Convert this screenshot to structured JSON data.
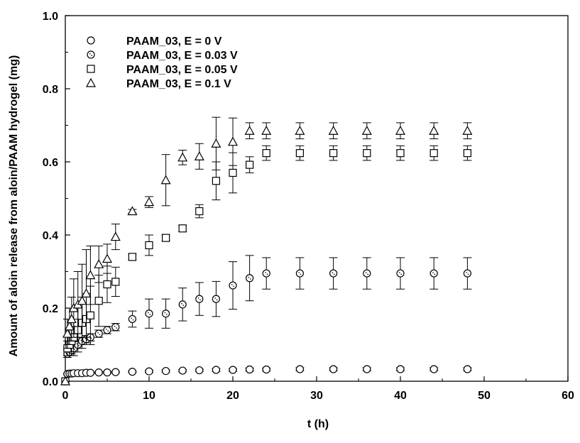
{
  "chart_data": {
    "type": "scatter",
    "title": "",
    "xlabel": "t (h)",
    "ylabel": "Amount of aloin release from aloin/PAAM hydrogel (mg)",
    "xlim": [
      0,
      60
    ],
    "ylim": [
      0.0,
      1.0
    ],
    "x_ticks": [
      0,
      10,
      20,
      30,
      40,
      50,
      60
    ],
    "y_ticks": [
      0.0,
      0.2,
      0.4,
      0.6,
      0.8,
      1.0
    ],
    "x_tick_labels": [
      "0",
      "10",
      "20",
      "30",
      "40",
      "50",
      "60"
    ],
    "y_tick_labels": [
      "0.0",
      "0.2",
      "0.4",
      "0.6",
      "0.8",
      "1.0"
    ],
    "grid": false,
    "legend_position": "top-left",
    "series": [
      {
        "name": "PAAM_03, E = 0 V",
        "marker": "circle",
        "x": [
          0,
          0.25,
          0.5,
          0.75,
          1,
          1.5,
          2,
          2.5,
          3,
          4,
          5,
          6,
          8,
          10,
          12,
          14,
          16,
          18,
          20,
          22,
          24,
          28,
          32,
          36,
          40,
          44,
          48
        ],
        "y": [
          0.0,
          0.02,
          0.021,
          0.021,
          0.022,
          0.022,
          0.022,
          0.023,
          0.023,
          0.024,
          0.024,
          0.025,
          0.026,
          0.027,
          0.028,
          0.029,
          0.03,
          0.031,
          0.031,
          0.032,
          0.032,
          0.033,
          0.033,
          0.033,
          0.033,
          0.033,
          0.033
        ],
        "err": [
          0,
          0.002,
          0.002,
          0.002,
          0.002,
          0.002,
          0.002,
          0.002,
          0.002,
          0.002,
          0.002,
          0.002,
          0.002,
          0.003,
          0.003,
          0.003,
          0.003,
          0.004,
          0.004,
          0.004,
          0.004,
          0.004,
          0.004,
          0.004,
          0.004,
          0.004,
          0.004
        ]
      },
      {
        "name": "PAAM_03, E = 0.03 V",
        "marker": "dotted-circle",
        "x": [
          0,
          0.25,
          0.5,
          0.75,
          1,
          1.5,
          2,
          2.5,
          3,
          4,
          5,
          6,
          8,
          10,
          12,
          14,
          16,
          18,
          20,
          22,
          24,
          28,
          32,
          36,
          40,
          44,
          48
        ],
        "y": [
          0.0,
          0.075,
          0.08,
          0.085,
          0.09,
          0.1,
          0.11,
          0.115,
          0.12,
          0.13,
          0.14,
          0.148,
          0.17,
          0.185,
          0.185,
          0.21,
          0.225,
          0.225,
          0.262,
          0.282,
          0.295,
          0.295,
          0.295,
          0.295,
          0.295,
          0.295,
          0.295
        ],
        "err": [
          0,
          0.01,
          0.01,
          0.01,
          0.01,
          0.01,
          0.01,
          0.01,
          0.01,
          0.01,
          0.01,
          0.01,
          0.022,
          0.04,
          0.04,
          0.045,
          0.045,
          0.048,
          0.065,
          0.062,
          0.043,
          0.043,
          0.043,
          0.043,
          0.043,
          0.043,
          0.043
        ]
      },
      {
        "name": "PAAM_03, E = 0.05 V",
        "marker": "square",
        "x": [
          0,
          0.25,
          0.5,
          0.75,
          1,
          1.5,
          2,
          2.5,
          3,
          4,
          5,
          6,
          8,
          10,
          12,
          14,
          16,
          18,
          20,
          22,
          24,
          28,
          32,
          36,
          40,
          44,
          48
        ],
        "y": [
          0.0,
          0.09,
          0.1,
          0.11,
          0.12,
          0.14,
          0.16,
          0.17,
          0.18,
          0.22,
          0.265,
          0.272,
          0.34,
          0.372,
          0.392,
          0.418,
          0.465,
          0.548,
          0.57,
          0.592,
          0.624,
          0.624,
          0.624,
          0.624,
          0.624,
          0.624,
          0.624
        ],
        "err": [
          0,
          0.02,
          0.03,
          0.04,
          0.05,
          0.06,
          0.07,
          0.07,
          0.08,
          0.07,
          0.05,
          0.04,
          0.008,
          0.028,
          0.008,
          0.008,
          0.018,
          0.052,
          0.055,
          0.022,
          0.02,
          0.02,
          0.02,
          0.02,
          0.02,
          0.02,
          0.02
        ]
      },
      {
        "name": "PAAM_03, E = 0.1 V",
        "marker": "triangle",
        "x": [
          0,
          0.25,
          0.5,
          0.75,
          1,
          1.5,
          2,
          2.5,
          3,
          4,
          5,
          6,
          8,
          10,
          12,
          14,
          16,
          18,
          20,
          22,
          24,
          28,
          32,
          36,
          40,
          44,
          48
        ],
        "y": [
          0.0,
          0.13,
          0.15,
          0.17,
          0.2,
          0.21,
          0.22,
          0.24,
          0.29,
          0.32,
          0.335,
          0.395,
          0.465,
          0.49,
          0.55,
          0.612,
          0.615,
          0.65,
          0.655,
          0.685,
          0.685,
          0.685,
          0.685,
          0.685,
          0.685,
          0.685,
          0.685
        ],
        "err": [
          0,
          0.04,
          0.05,
          0.06,
          0.08,
          0.09,
          0.1,
          0.12,
          0.08,
          0.05,
          0.04,
          0.035,
          0.005,
          0.015,
          0.07,
          0.02,
          0.035,
          0.072,
          0.065,
          0.022,
          0.022,
          0.022,
          0.022,
          0.022,
          0.022,
          0.022,
          0.022
        ]
      }
    ]
  }
}
